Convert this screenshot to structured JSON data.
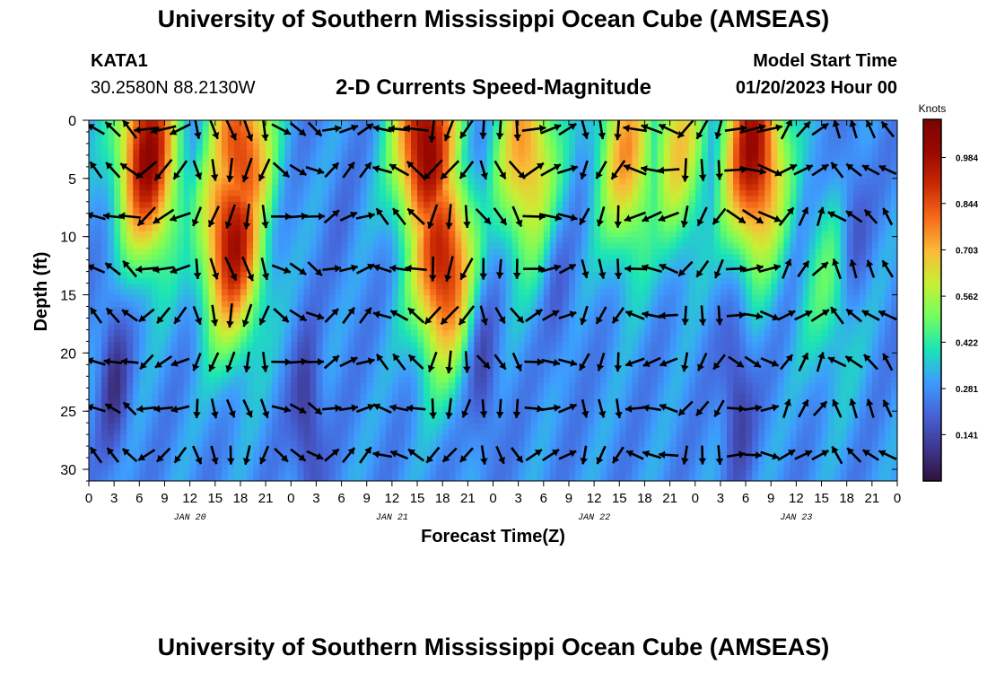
{
  "header": {
    "title": "University of Southern Mississippi Ocean Cube (AMSEAS)",
    "station": "KATA1",
    "coordinates": "30.2580N  88.2130W",
    "subtitle": "2-D Currents Speed-Magnitude",
    "model_start_label": "Model Start Time",
    "model_start_value": "01/20/2023 Hour 00"
  },
  "footer": {
    "title": "University of Southern Mississippi Ocean Cube (AMSEAS)"
  },
  "chart_data": {
    "type": "heatmap",
    "title": "2-D Currents Speed-Magnitude",
    "xlabel": "Forecast Time(Z)",
    "ylabel": "Depth (ft)",
    "x_ticks": [
      "0",
      "3",
      "6",
      "9",
      "12",
      "15",
      "18",
      "21",
      "0",
      "3",
      "6",
      "9",
      "12",
      "15",
      "18",
      "21",
      "0",
      "3",
      "6",
      "9",
      "12",
      "15",
      "18",
      "21",
      "0",
      "3",
      "6",
      "9",
      "12",
      "15",
      "18",
      "21",
      "0"
    ],
    "x_range_hours": [
      0,
      96
    ],
    "date_labels": [
      {
        "label": "JAN 20",
        "hour": 12
      },
      {
        "label": "JAN 21",
        "hour": 36
      },
      {
        "label": "JAN 22",
        "hour": 60
      },
      {
        "label": "JAN 23",
        "hour": 84
      }
    ],
    "y_ticks": [
      0,
      5,
      10,
      15,
      20,
      25,
      30
    ],
    "y_range_ft": [
      0,
      31
    ],
    "colorbar": {
      "units": "Knots",
      "ticks": [
        "0.984",
        "0.844",
        "0.703",
        "0.562",
        "0.422",
        "0.281",
        "0.141"
      ],
      "range": [
        0,
        1.1
      ],
      "colors": [
        "#30123b",
        "#3e378f",
        "#4662d7",
        "#3e9bfe",
        "#1ae4b6",
        "#72fe5e",
        "#c8ef34",
        "#faba39",
        "#f66b19",
        "#ca2a04",
        "#9a0800",
        "#7a0403"
      ]
    },
    "speed_hotspots": [
      {
        "hour": 7,
        "depth_ft": 3,
        "speed": 1.0
      },
      {
        "hour": 17,
        "depth_ft": 10,
        "speed": 0.98
      },
      {
        "hour": 18,
        "depth_ft": 3,
        "speed": 0.9
      },
      {
        "hour": 40,
        "depth_ft": 2,
        "speed": 1.05
      },
      {
        "hour": 42,
        "depth_ft": 12,
        "speed": 0.96
      },
      {
        "hour": 52,
        "depth_ft": 3,
        "speed": 0.75
      },
      {
        "hour": 64,
        "depth_ft": 3,
        "speed": 0.72
      },
      {
        "hour": 70,
        "depth_ft": 2,
        "speed": 0.65
      },
      {
        "hour": 79,
        "depth_ft": 3,
        "speed": 1.0
      },
      {
        "hour": 88,
        "depth_ft": 14,
        "speed": 0.45
      }
    ],
    "speed_lows": [
      {
        "hour": 3,
        "depth_ft": 22,
        "speed": 0.1
      },
      {
        "hour": 26,
        "depth_ft": 26,
        "speed": 0.08
      },
      {
        "hour": 30,
        "depth_ft": 10,
        "speed": 0.25
      },
      {
        "hour": 47,
        "depth_ft": 22,
        "speed": 0.15
      },
      {
        "hour": 56,
        "depth_ft": 16,
        "speed": 0.22
      },
      {
        "hour": 77,
        "depth_ft": 24,
        "speed": 0.1
      },
      {
        "hour": 91,
        "depth_ft": 8,
        "speed": 0.18
      }
    ],
    "vector_times_hours": [
      0,
      2,
      4,
      6,
      8,
      10,
      12,
      14,
      16,
      18,
      20,
      22,
      24,
      26,
      28,
      30,
      32,
      34,
      36,
      38,
      40,
      42,
      44,
      46,
      48,
      50,
      52,
      54,
      56,
      58,
      60,
      62,
      64,
      66,
      68,
      70,
      72,
      74,
      76,
      78,
      80,
      82,
      84,
      86,
      88,
      90,
      92,
      94
    ],
    "vector_depths_ft": [
      0,
      3.5,
      7.5,
      12,
      16,
      20,
      24,
      28
    ],
    "vector_direction_key": [
      {
        "hour_start": 0,
        "hour_end": 6,
        "direction_deg": 300
      },
      {
        "hour_start": 6,
        "hour_end": 12,
        "direction_deg": 240
      },
      {
        "hour_start": 12,
        "hour_end": 22,
        "direction_deg": 180
      },
      {
        "hour_start": 22,
        "hour_end": 28,
        "direction_deg": 110
      },
      {
        "hour_start": 28,
        "hour_end": 34,
        "direction_deg": 60
      },
      {
        "hour_start": 34,
        "hour_end": 40,
        "direction_deg": 300
      },
      {
        "hour_start": 40,
        "hour_end": 46,
        "direction_deg": 200
      },
      {
        "hour_start": 46,
        "hour_end": 52,
        "direction_deg": 160
      },
      {
        "hour_start": 52,
        "hour_end": 58,
        "direction_deg": 80
      },
      {
        "hour_start": 58,
        "hour_end": 64,
        "direction_deg": 190
      },
      {
        "hour_start": 64,
        "hour_end": 70,
        "direction_deg": 270
      },
      {
        "hour_start": 70,
        "hour_end": 76,
        "direction_deg": 200
      },
      {
        "hour_start": 76,
        "hour_end": 82,
        "direction_deg": 100
      },
      {
        "hour_start": 82,
        "hour_end": 88,
        "direction_deg": 40
      },
      {
        "hour_start": 88,
        "hour_end": 96,
        "direction_deg": 320
      }
    ]
  }
}
